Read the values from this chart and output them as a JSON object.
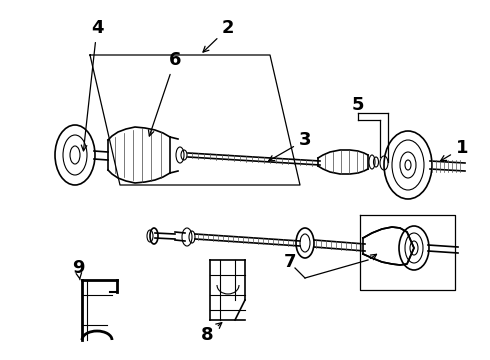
{
  "bg_color": "#ffffff",
  "line_color": "#000000",
  "label_color": "#000000",
  "label_fontsize": 13,
  "figsize": [
    4.9,
    3.6
  ],
  "dpi": 100
}
